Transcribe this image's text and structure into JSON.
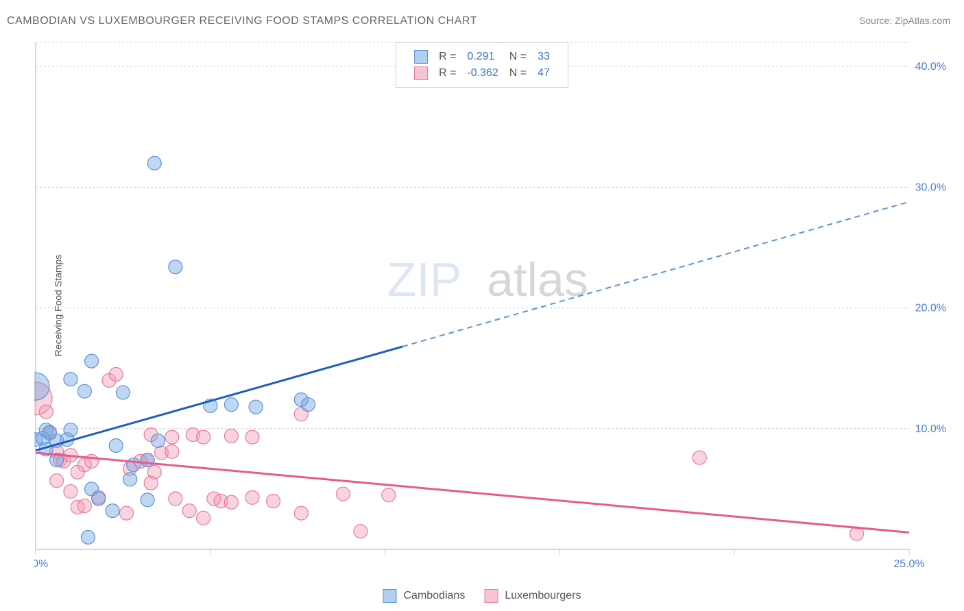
{
  "header": {
    "title": "CAMBODIAN VS LUXEMBOURGER RECEIVING FOOD STAMPS CORRELATION CHART",
    "source_label": "Source: ",
    "source_name": "ZipAtlas.com"
  },
  "chart": {
    "type": "scatter",
    "y_axis_label": "Receiving Food Stamps",
    "watermark_part1": "ZIP",
    "watermark_part2": "atlas",
    "background_color": "#ffffff",
    "grid_color": "#cccccc",
    "xlim": [
      0,
      25
    ],
    "ylim": [
      0,
      42
    ],
    "x_ticks": [
      {
        "v": 0,
        "label": "0.0%"
      },
      {
        "v": 5,
        "label": ""
      },
      {
        "v": 10,
        "label": ""
      },
      {
        "v": 15,
        "label": ""
      },
      {
        "v": 20,
        "label": ""
      },
      {
        "v": 25,
        "label": "25.0%"
      }
    ],
    "y_ticks": [
      {
        "v": 10,
        "label": "10.0%"
      },
      {
        "v": 20,
        "label": "20.0%"
      },
      {
        "v": 30,
        "label": "30.0%"
      },
      {
        "v": 40,
        "label": "40.0%"
      }
    ],
    "legend_top": {
      "r_prefix": "R =",
      "n_prefix": "N =",
      "rows": [
        {
          "swatch": "blue",
          "r": "0.291",
          "n": "33"
        },
        {
          "swatch": "pink",
          "r": "-0.362",
          "n": "47"
        }
      ]
    },
    "legend_bottom": [
      {
        "swatch": "blue",
        "label": "Cambodians"
      },
      {
        "swatch": "pink",
        "label": "Luxembourgers"
      }
    ],
    "series_colors": {
      "blue_fill": "rgba(116,167,228,0.45)",
      "blue_stroke": "#5b93d4",
      "pink_fill": "rgba(240,148,175,0.40)",
      "pink_stroke": "#e67c9e",
      "trend_blue": "#1d5fbf",
      "trend_pink": "#e85a8a"
    },
    "trend_lines": {
      "blue": {
        "x1": 0,
        "y1": 8.2,
        "x_split": 10.5,
        "y_split": 16.8,
        "x2": 25,
        "y2": 28.8
      },
      "pink": {
        "x1": 0,
        "y1": 8.0,
        "x2": 25,
        "y2": 1.4
      }
    },
    "marker_radius": 10,
    "data_blue": [
      {
        "x": 0.0,
        "y": 13.5,
        "r": 20
      },
      {
        "x": 0.3,
        "y": 9.9
      },
      {
        "x": 0.0,
        "y": 9.1
      },
      {
        "x": 0.2,
        "y": 9.2
      },
      {
        "x": 0.4,
        "y": 9.7
      },
      {
        "x": 0.6,
        "y": 9.0
      },
      {
        "x": 0.3,
        "y": 8.3
      },
      {
        "x": 1.0,
        "y": 9.9
      },
      {
        "x": 0.9,
        "y": 9.1
      },
      {
        "x": 0.6,
        "y": 7.4
      },
      {
        "x": 1.0,
        "y": 14.1
      },
      {
        "x": 1.4,
        "y": 13.1
      },
      {
        "x": 1.5,
        "y": 1.0
      },
      {
        "x": 1.6,
        "y": 5.0
      },
      {
        "x": 1.8,
        "y": 4.2
      },
      {
        "x": 2.3,
        "y": 8.6
      },
      {
        "x": 1.6,
        "y": 15.6
      },
      {
        "x": 2.2,
        "y": 3.2
      },
      {
        "x": 2.5,
        "y": 13.0
      },
      {
        "x": 2.7,
        "y": 5.8
      },
      {
        "x": 2.8,
        "y": 7.0
      },
      {
        "x": 3.2,
        "y": 7.4
      },
      {
        "x": 3.2,
        "y": 4.1
      },
      {
        "x": 3.5,
        "y": 9.0
      },
      {
        "x": 4.0,
        "y": 23.4
      },
      {
        "x": 3.4,
        "y": 32.0
      },
      {
        "x": 5.0,
        "y": 11.9
      },
      {
        "x": 5.6,
        "y": 12.0
      },
      {
        "x": 6.3,
        "y": 11.8
      },
      {
        "x": 7.6,
        "y": 12.4
      },
      {
        "x": 7.8,
        "y": 12.0
      }
    ],
    "data_pink": [
      {
        "x": 0.0,
        "y": 12.5,
        "r": 24
      },
      {
        "x": 0.3,
        "y": 11.4
      },
      {
        "x": 0.4,
        "y": 9.6
      },
      {
        "x": 0.6,
        "y": 8.1
      },
      {
        "x": 0.7,
        "y": 7.4
      },
      {
        "x": 0.8,
        "y": 7.3
      },
      {
        "x": 1.0,
        "y": 7.8
      },
      {
        "x": 0.6,
        "y": 5.7
      },
      {
        "x": 1.2,
        "y": 6.4
      },
      {
        "x": 1.4,
        "y": 7.0
      },
      {
        "x": 1.6,
        "y": 7.3
      },
      {
        "x": 1.0,
        "y": 4.8
      },
      {
        "x": 1.2,
        "y": 3.5
      },
      {
        "x": 1.4,
        "y": 3.6
      },
      {
        "x": 1.8,
        "y": 4.3
      },
      {
        "x": 2.1,
        "y": 14.0
      },
      {
        "x": 2.3,
        "y": 14.5
      },
      {
        "x": 2.6,
        "y": 3.0
      },
      {
        "x": 2.7,
        "y": 6.7
      },
      {
        "x": 3.0,
        "y": 7.3
      },
      {
        "x": 3.2,
        "y": 7.4
      },
      {
        "x": 3.4,
        "y": 6.4
      },
      {
        "x": 3.3,
        "y": 5.5
      },
      {
        "x": 3.6,
        "y": 8.0
      },
      {
        "x": 3.9,
        "y": 8.1
      },
      {
        "x": 3.9,
        "y": 9.3
      },
      {
        "x": 3.3,
        "y": 9.5
      },
      {
        "x": 4.0,
        "y": 4.2
      },
      {
        "x": 4.4,
        "y": 3.2
      },
      {
        "x": 4.5,
        "y": 9.5
      },
      {
        "x": 4.8,
        "y": 2.6
      },
      {
        "x": 4.8,
        "y": 9.3
      },
      {
        "x": 5.1,
        "y": 4.2
      },
      {
        "x": 5.3,
        "y": 4.0
      },
      {
        "x": 5.6,
        "y": 9.4
      },
      {
        "x": 5.6,
        "y": 3.9
      },
      {
        "x": 6.2,
        "y": 4.3
      },
      {
        "x": 6.8,
        "y": 4.0
      },
      {
        "x": 6.2,
        "y": 9.3
      },
      {
        "x": 7.6,
        "y": 3.0
      },
      {
        "x": 7.6,
        "y": 11.2
      },
      {
        "x": 8.8,
        "y": 4.6
      },
      {
        "x": 9.3,
        "y": 1.5
      },
      {
        "x": 10.1,
        "y": 4.5
      },
      {
        "x": 19.0,
        "y": 7.6
      },
      {
        "x": 23.5,
        "y": 1.3
      }
    ]
  }
}
